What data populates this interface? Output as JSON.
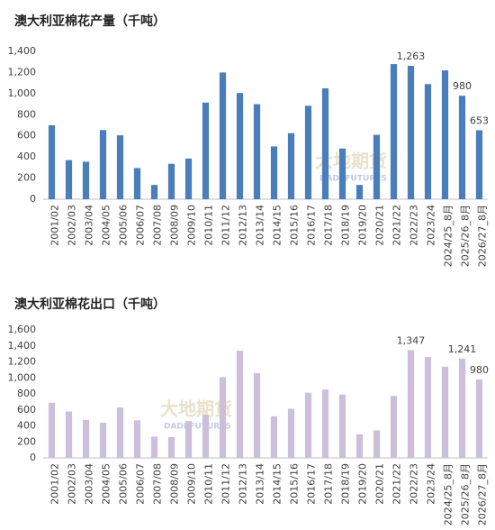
{
  "chart_data": [
    {
      "type": "bar",
      "title": "澳大利亚棉花产量（千吨）",
      "categories": [
        "2001/02",
        "2002/03",
        "2003/04",
        "2004/05",
        "2005/06",
        "2006/07",
        "2007/08",
        "2008/09",
        "2009/10",
        "2010/11",
        "2011/12",
        "2012/13",
        "2013/14",
        "2014/15",
        "2015/16",
        "2016/17",
        "2017/18",
        "2018/19",
        "2019/20",
        "2020/21",
        "2021/22",
        "2022/23",
        "2023/24",
        "2024/25_8月",
        "2025/26_8月",
        "2026/27_8月"
      ],
      "values": [
        700,
        370,
        355,
        655,
        605,
        295,
        135,
        335,
        385,
        915,
        1200,
        1005,
        900,
        500,
        625,
        885,
        1050,
        480,
        135,
        610,
        1280,
        1263,
        1090,
        1220,
        980,
        653
      ],
      "value_labels": [
        null,
        null,
        null,
        null,
        null,
        null,
        null,
        null,
        null,
        null,
        null,
        null,
        null,
        null,
        null,
        null,
        null,
        null,
        null,
        null,
        null,
        "1,263",
        null,
        null,
        "980",
        "653"
      ],
      "color": "#4a7ebb",
      "ylim": [
        0,
        1400
      ],
      "yticks": [
        0,
        200,
        400,
        600,
        800,
        {
          "value": 1000,
          "label": "1,000"
        },
        {
          "value": 1200,
          "label": "1,200"
        },
        {
          "value": 1400,
          "label": "1,400"
        }
      ],
      "grid": false
    },
    {
      "type": "bar",
      "title": "澳大利亚棉花出口（千吨）",
      "categories": [
        "2001/02",
        "2002/03",
        "2003/04",
        "2004/05",
        "2005/06",
        "2006/07",
        "2007/08",
        "2008/09",
        "2009/10",
        "2010/11",
        "2011/12",
        "2012/13",
        "2013/14",
        "2014/15",
        "2015/16",
        "2016/17",
        "2017/18",
        "2018/19",
        "2019/20",
        "2020/21",
        "2021/22",
        "2022/23",
        "2023/24",
        "2024/25_8月",
        "2025/26_8月",
        "2026/27_8月"
      ],
      "values": [
        690,
        580,
        475,
        440,
        630,
        470,
        265,
        260,
        460,
        540,
        1010,
        1340,
        1060,
        520,
        615,
        815,
        855,
        790,
        295,
        345,
        775,
        1347,
        1260,
        1140,
        1241,
        980
      ],
      "value_labels": [
        null,
        null,
        null,
        null,
        null,
        null,
        null,
        null,
        null,
        null,
        null,
        null,
        null,
        null,
        null,
        null,
        null,
        null,
        null,
        null,
        null,
        "1,347",
        null,
        null,
        "1,241",
        "980"
      ],
      "color": "#cbbfdc",
      "ylim": [
        0,
        1600
      ],
      "yticks": [
        0,
        200,
        400,
        600,
        800,
        {
          "value": 1000,
          "label": "1,000"
        },
        {
          "value": 1200,
          "label": "1,200"
        },
        {
          "value": 1400,
          "label": "1,400"
        },
        {
          "value": 1600,
          "label": "1,600"
        }
      ],
      "grid": false
    }
  ],
  "watermark": {
    "cn": "大地期货",
    "en": "DADI FUTURES"
  }
}
